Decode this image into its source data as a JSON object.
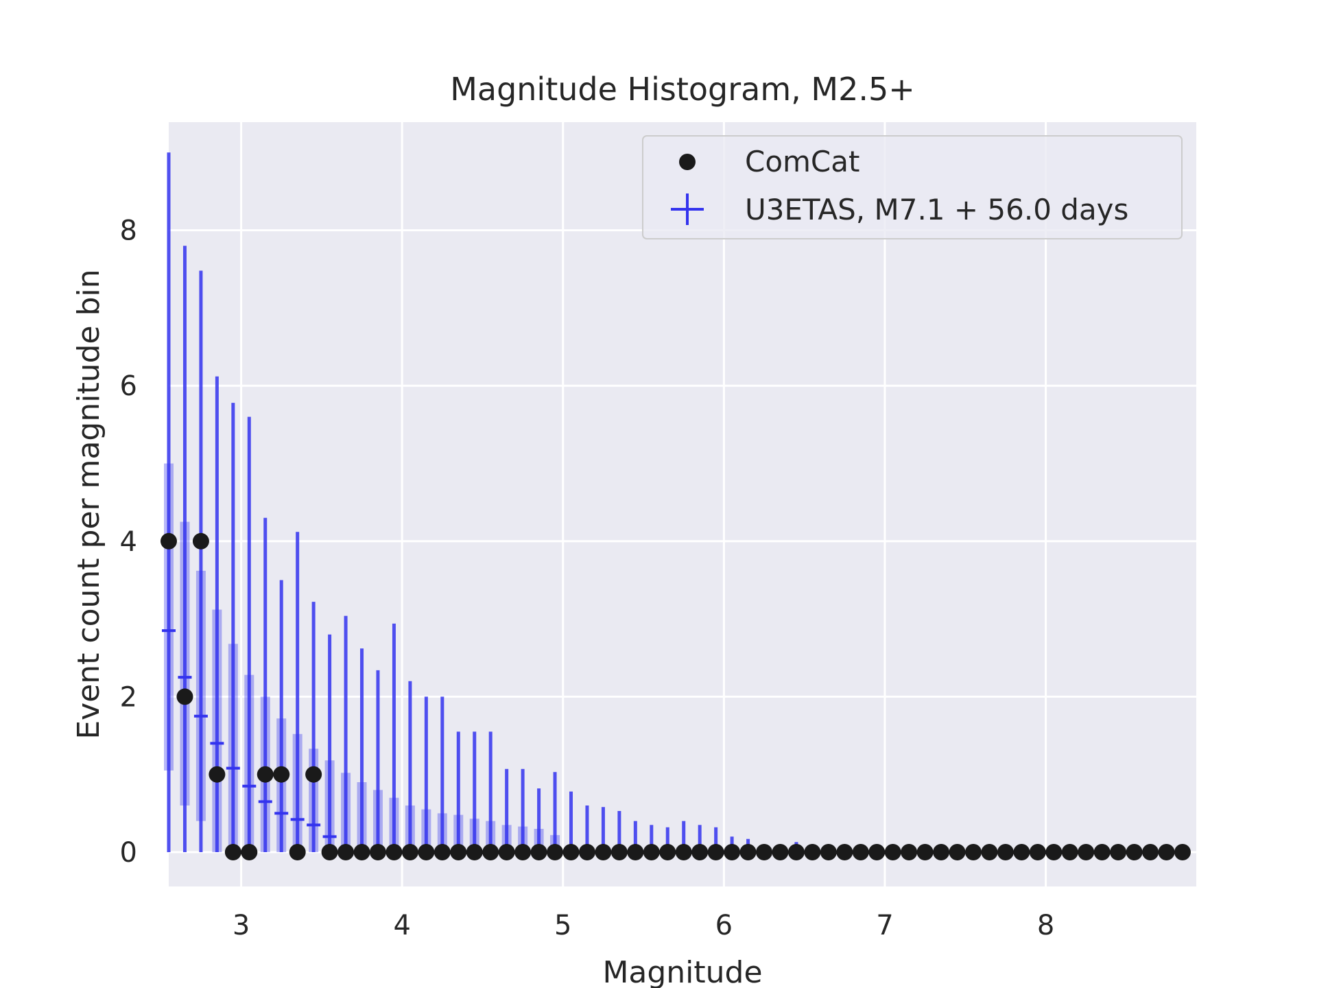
{
  "chart_data": {
    "type": "scatter",
    "title": "Magnitude Histogram, M2.5+",
    "xlabel": "Magnitude",
    "ylabel": "Event count per magnitude bin",
    "xlim": [
      2.55,
      8.85
    ],
    "ylim": [
      -0.4,
      9.4
    ],
    "xticks": [
      3,
      4,
      5,
      6,
      7,
      8
    ],
    "yticks": [
      0,
      2,
      4,
      6,
      8
    ],
    "grid": true,
    "legend_position": "top-right",
    "colors": {
      "background": "#eaeaf2",
      "grid": "#ffffff",
      "comcat": "#1a1a1a",
      "u3etas": "#3333ee"
    },
    "legend": [
      {
        "label": "ComCat",
        "marker": "dot"
      },
      {
        "label": "U3ETAS, M7.1 + 56.0 days",
        "marker": "plus"
      }
    ],
    "series": [
      {
        "name": "ComCat",
        "x": [
          2.55,
          2.65,
          2.75,
          2.85,
          2.95,
          3.05,
          3.15,
          3.25,
          3.35,
          3.45,
          3.55,
          3.65,
          3.75,
          3.85,
          3.95,
          4.05,
          4.15,
          4.25,
          4.35,
          4.45,
          4.55,
          4.65,
          4.75,
          4.85,
          4.95,
          5.05,
          5.15,
          5.25,
          5.35,
          5.45,
          5.55,
          5.65,
          5.75,
          5.85,
          5.95,
          6.05,
          6.15,
          6.25,
          6.35,
          6.45,
          6.55,
          6.65,
          6.75,
          6.85,
          6.95,
          7.05,
          7.15,
          7.25,
          7.35,
          7.45,
          7.55,
          7.65,
          7.75,
          7.85,
          7.95,
          8.05,
          8.15,
          8.25,
          8.35,
          8.45,
          8.55,
          8.65,
          8.75,
          8.85
        ],
        "y": [
          4,
          2,
          4,
          1,
          0,
          0,
          1,
          1,
          0,
          1,
          0,
          0,
          0,
          0,
          0,
          0,
          0,
          0,
          0,
          0,
          0,
          0,
          0,
          0,
          0,
          0,
          0,
          0,
          0,
          0,
          0,
          0,
          0,
          0,
          0,
          0,
          0,
          0,
          0,
          0,
          0,
          0,
          0,
          0,
          0,
          0,
          0,
          0,
          0,
          0,
          0,
          0,
          0,
          0,
          0,
          0,
          0,
          0,
          0,
          0,
          0,
          0,
          0,
          0
        ]
      },
      {
        "name": "U3ETAS, M7.1 + 56.0 days",
        "x": [
          2.55,
          2.65,
          2.75,
          2.85,
          2.95,
          3.05,
          3.15,
          3.25,
          3.35,
          3.45,
          3.55,
          3.65,
          3.75,
          3.85,
          3.95,
          4.05,
          4.15,
          4.25,
          4.35,
          4.45,
          4.55,
          4.65,
          4.75,
          4.85,
          4.95,
          5.05,
          5.15,
          5.25,
          5.35,
          5.45,
          5.55,
          5.65,
          5.75,
          5.85,
          5.95,
          6.05,
          6.15,
          6.25,
          6.35,
          6.45
        ],
        "median": [
          2.85,
          2.25,
          1.75,
          1.4,
          1.08,
          0.85,
          0.65,
          0.5,
          0.42,
          0.35,
          0.2,
          null,
          null,
          null,
          null,
          null,
          null,
          null,
          null,
          null,
          null,
          null,
          null,
          null,
          null,
          null,
          null,
          null,
          null,
          null,
          null,
          null,
          null,
          null,
          null,
          null,
          null,
          null,
          null,
          null
        ],
        "inner_low": [
          1.05,
          0.6,
          0.4,
          0,
          0,
          0,
          0,
          0,
          0,
          0,
          0,
          0,
          0,
          0,
          0,
          0,
          0,
          0,
          0,
          0,
          0,
          0,
          0,
          0,
          0,
          null,
          null,
          null,
          null,
          null,
          null,
          null,
          null,
          null,
          null,
          null,
          null,
          null,
          null,
          null
        ],
        "inner_high": [
          5.0,
          4.25,
          3.62,
          3.12,
          2.68,
          2.28,
          2.0,
          1.72,
          1.52,
          1.33,
          1.18,
          1.02,
          0.9,
          0.8,
          0.7,
          0.6,
          0.55,
          0.5,
          0.48,
          0.43,
          0.4,
          0.35,
          0.33,
          0.3,
          0.22,
          null,
          null,
          null,
          null,
          null,
          null,
          null,
          null,
          null,
          null,
          null,
          null,
          null,
          null,
          null
        ],
        "outer_low": [
          0,
          0,
          0,
          0,
          0,
          0,
          0,
          0,
          0,
          0,
          0,
          0,
          0,
          0,
          0,
          0,
          0,
          0,
          0,
          0,
          0,
          0,
          0,
          0,
          0,
          0,
          0,
          0,
          0,
          0,
          0,
          0,
          0,
          0,
          0,
          0,
          0,
          0,
          0,
          0
        ],
        "outer_high": [
          9.0,
          7.8,
          7.48,
          6.12,
          5.78,
          5.6,
          4.3,
          3.5,
          4.12,
          3.22,
          2.8,
          3.04,
          2.62,
          2.34,
          2.94,
          2.2,
          2.0,
          2.0,
          1.55,
          1.55,
          1.55,
          1.07,
          1.07,
          0.82,
          1.03,
          0.78,
          0.6,
          0.58,
          0.53,
          0.4,
          0.35,
          0.32,
          0.4,
          0.35,
          0.32,
          0.2,
          0.17,
          0.1,
          0.08,
          0.13
        ]
      }
    ]
  }
}
